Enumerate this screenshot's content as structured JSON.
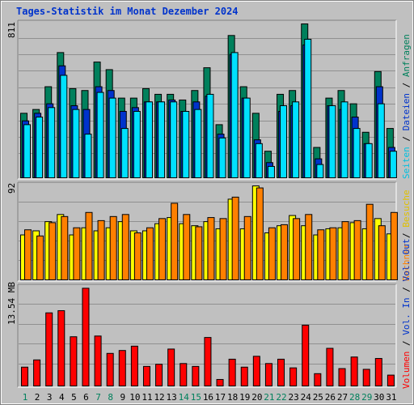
{
  "title": "Tages-Statistik im Monat Dezember 2024",
  "colors": {
    "background": "#c0c0c0",
    "panel": "#c0c0c0",
    "grid": "#909090",
    "anfragen": "#00805c",
    "dateien": "#0033cc",
    "seiten": "#00e0ff",
    "besuche": "#ffff00",
    "rechner": "#ff8000",
    "volumen": "#ff0000",
    "vol_out": "#00805c",
    "vol_in": "#0033cc",
    "weekend_day": "#00805c",
    "weekday": "#000000"
  },
  "legend": {
    "top": [
      {
        "text": "Anfragen",
        "color": "#00805c"
      },
      {
        "text": "Dateien",
        "color": "#0033cc"
      },
      {
        "text": "Seiten",
        "color": "#00c0e0"
      }
    ],
    "middle": [
      {
        "text": "Besuche",
        "color": "#e0c000"
      },
      {
        "text": "Rechner",
        "color": "#ff8000"
      }
    ],
    "bottom": [
      {
        "text": "Vol. Out",
        "color": "#0033cc"
      },
      {
        "text": "Vol. In",
        "color": "#0033cc"
      },
      {
        "text": "Volumen",
        "color": "#ff0000"
      }
    ]
  },
  "chart_data": [
    {
      "type": "bar",
      "panel": "top",
      "y_max_label": "811",
      "ylim": [
        0,
        811
      ],
      "x": [
        1,
        2,
        3,
        4,
        5,
        6,
        7,
        8,
        9,
        10,
        11,
        12,
        13,
        14,
        15,
        16,
        17,
        18,
        19,
        20,
        21,
        22,
        23,
        24,
        25,
        26,
        27,
        28,
        29,
        30,
        31
      ],
      "series": [
        {
          "name": "Anfragen",
          "values": [
            340,
            360,
            480,
            660,
            470,
            460,
            610,
            570,
            420,
            420,
            470,
            440,
            440,
            410,
            460,
            580,
            280,
            750,
            480,
            340,
            140,
            440,
            460,
            811,
            160,
            420,
            460,
            390,
            240,
            560,
            260
          ]
        },
        {
          "name": "Dateien",
          "values": [
            300,
            340,
            390,
            590,
            380,
            360,
            480,
            460,
            350,
            370,
            400,
            400,
            410,
            350,
            400,
            430,
            230,
            650,
            420,
            200,
            80,
            350,
            380,
            700,
            100,
            380,
            360,
            320,
            180,
            480,
            160
          ]
        },
        {
          "name": "Seiten",
          "values": [
            280,
            320,
            370,
            540,
            360,
            230,
            450,
            420,
            260,
            350,
            400,
            400,
            400,
            350,
            360,
            440,
            210,
            660,
            420,
            180,
            60,
            380,
            400,
            730,
            70,
            380,
            400,
            260,
            180,
            390,
            140
          ]
        }
      ]
    },
    {
      "type": "bar",
      "panel": "middle",
      "y_max_label": "92",
      "ylim": [
        0,
        92
      ],
      "x": [
        1,
        2,
        3,
        4,
        5,
        6,
        7,
        8,
        9,
        10,
        11,
        12,
        13,
        14,
        15,
        16,
        17,
        18,
        19,
        20,
        21,
        22,
        23,
        24,
        25,
        26,
        27,
        28,
        29,
        30,
        31
      ],
      "series": [
        {
          "name": "Besuche",
          "values": [
            44,
            48,
            57,
            64,
            44,
            51,
            48,
            51,
            57,
            48,
            48,
            55,
            61,
            55,
            53,
            57,
            50,
            79,
            50,
            92,
            46,
            53,
            63,
            53,
            44,
            50,
            51,
            56,
            50,
            60,
            45
          ]
        },
        {
          "name": "Rechner",
          "values": [
            49,
            43,
            56,
            62,
            51,
            66,
            58,
            62,
            64,
            46,
            51,
            60,
            75,
            64,
            52,
            61,
            60,
            81,
            62,
            90,
            51,
            54,
            60,
            64,
            49,
            51,
            57,
            58,
            74,
            53,
            66
          ]
        }
      ]
    },
    {
      "type": "bar",
      "panel": "bottom",
      "y_max_label": "13.54 MB",
      "ylim": [
        0,
        13.54
      ],
      "x": [
        1,
        2,
        3,
        4,
        5,
        6,
        7,
        8,
        9,
        10,
        11,
        12,
        13,
        14,
        15,
        16,
        17,
        18,
        19,
        20,
        21,
        22,
        23,
        24,
        25,
        26,
        27,
        28,
        29,
        30,
        31
      ],
      "series": [
        {
          "name": "Volumen",
          "values": [
            2.6,
            3.6,
            10.1,
            10.4,
            6.8,
            13.5,
            6.9,
            4.5,
            4.9,
            5.5,
            2.7,
            3.0,
            5.1,
            3.1,
            2.7,
            6.7,
            0.9,
            3.7,
            2.6,
            4.1,
            3.1,
            3.7,
            2.5,
            8.4,
            1.7,
            5.2,
            2.4,
            4.0,
            2.3,
            3.8,
            1.5
          ]
        }
      ]
    }
  ],
  "day_labels": [
    "1",
    "2",
    "3",
    "4",
    "5",
    "6",
    "7",
    "8",
    "9",
    "10",
    "11",
    "12",
    "13",
    "14",
    "15",
    "16",
    "17",
    "18",
    "19",
    "20",
    "21",
    "22",
    "23",
    "24",
    "25",
    "26",
    "27",
    "28",
    "29",
    "30",
    "31"
  ],
  "weekend_days": [
    1,
    7,
    8,
    14,
    15,
    21,
    22,
    28,
    29
  ]
}
